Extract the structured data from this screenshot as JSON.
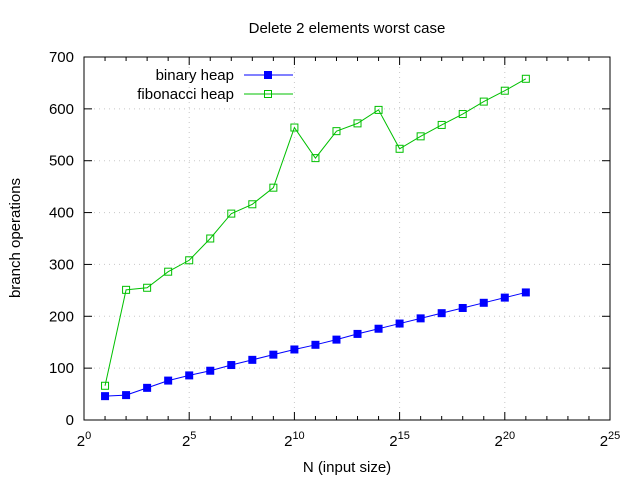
{
  "chart_data": {
    "type": "line",
    "title": "Delete 2 elements worst case",
    "xlabel": "N (input size)",
    "ylabel": "branch operations",
    "x_scale": "log2",
    "x_exponent_range": [
      0,
      25
    ],
    "x_tick_exponents": [
      0,
      5,
      10,
      15,
      20,
      25
    ],
    "x_tick_base": "2",
    "ylim": [
      0,
      700
    ],
    "y_ticks": [
      0,
      100,
      200,
      300,
      400,
      500,
      600,
      700
    ],
    "grid": true,
    "legend_position": "top-left",
    "x_exponents": [
      1,
      2,
      3,
      4,
      5,
      6,
      7,
      8,
      9,
      10,
      11,
      12,
      13,
      14,
      15,
      16,
      17,
      18,
      19,
      20,
      21
    ],
    "series": [
      {
        "name": "binary heap",
        "color": "#0000ff",
        "marker": "filled-square",
        "values": [
          46,
          48,
          62,
          76,
          86,
          95,
          106,
          116,
          126,
          136,
          145,
          155,
          166,
          176,
          186,
          196,
          206,
          216,
          226,
          236,
          246
        ]
      },
      {
        "name": "fibonacci heap",
        "color": "#00c000",
        "marker": "open-square",
        "values": [
          66,
          251,
          255,
          286,
          308,
          350,
          398,
          416,
          448,
          564,
          505,
          557,
          572,
          598,
          523,
          547,
          569,
          590,
          614,
          635,
          658
        ]
      }
    ]
  }
}
